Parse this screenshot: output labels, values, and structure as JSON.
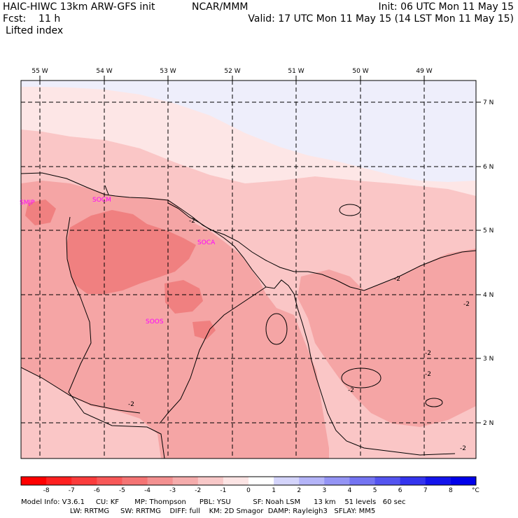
{
  "header": {
    "line1_left": "HAIC-HIWC 13km ARW-GFS init",
    "line1_center": "NCAR/MMM",
    "line1_right": "Init: 06 UTC Mon 11 May 15",
    "line2_left": "Fcst:    11 h",
    "line2_right": "Valid: 17 UTC Mon 11 May 15 (14 LST Mon 11 May 15)",
    "field": "Lifted index"
  },
  "map": {
    "lon_labels": [
      "55 W",
      "54 W",
      "53 W",
      "52 W",
      "51 W",
      "50 W",
      "49 W"
    ],
    "lat_labels": [
      "7 N",
      "6 N",
      "5 N",
      "4 N",
      "3 N",
      "2 N"
    ],
    "stations": [
      "SMJP",
      "SOCM",
      "SOCA",
      "SOOS"
    ],
    "contour_labels": [
      "-2",
      "-2",
      "-2",
      "-2",
      "-2",
      "-2",
      "-2",
      "-2"
    ],
    "colors": {
      "li_m4": "#f08080",
      "li_m3": "#f5a5a5",
      "li_m2": "#fac6c6",
      "li_m1": "#fde6e6",
      "li_0": "#eeeefb",
      "coast": "#000000",
      "label": "#ff00ff"
    }
  },
  "colorbar": {
    "labels": [
      "-8",
      "-7",
      "-6",
      "-5",
      "-4",
      "-3",
      "-2",
      "-1",
      "0",
      "1",
      "2",
      "3",
      "4",
      "5",
      "6",
      "7",
      "8"
    ],
    "unit": "°C",
    "colors": [
      "#ff0000",
      "#ff2020",
      "#fb3c3c",
      "#f85858",
      "#f57474",
      "#f39090",
      "#f5acac",
      "#f8c8c8",
      "#fce4e4",
      "#ffffff",
      "#d4d4fb",
      "#b4b4f8",
      "#9494f5",
      "#7474f2",
      "#5454f0",
      "#3434ee",
      "#1414ec",
      "#0000ea"
    ]
  },
  "model_info": {
    "line1": "Model Info: V3.6.1     CU: KF       MP: Thompson      PBL: YSU          SF: Noah LSM      13 km    51 levels   60 sec",
    "line2": "                      LW: RRTMG     SW: RRTMG    DIFF: full    KM: 2D Smagor  DAMP: Rayleigh3   SFLAY: MM5"
  }
}
